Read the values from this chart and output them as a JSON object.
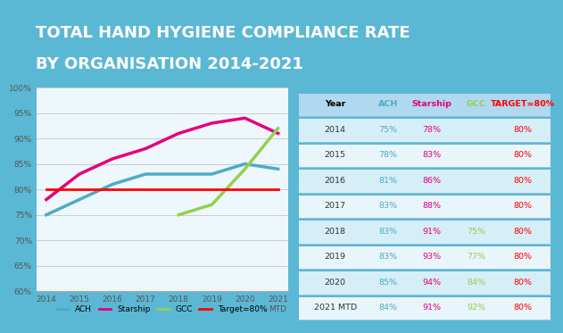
{
  "title_line1": "TOTAL HAND HYGIENE COMPLIANCE RATE",
  "title_line2": "BY ORGANISATION 2014-2021",
  "title_bg": "#E5007D",
  "title_color": "#FFFFFF",
  "outer_bg": "#5BB8D4",
  "chart_bg": "#EEF7FC",
  "table_bg": "#D6EEF8",
  "x_labels": [
    "2014",
    "2015",
    "2016",
    "2017",
    "2018",
    "2019",
    "2020",
    "2021\nMTD"
  ],
  "x_values": [
    0,
    1,
    2,
    3,
    4,
    5,
    6,
    7
  ],
  "ACH": [
    75,
    78,
    81,
    83,
    83,
    83,
    85,
    84
  ],
  "ACH_color": "#4BACC6",
  "Starship": [
    78,
    83,
    86,
    88,
    91,
    93,
    94,
    91
  ],
  "Starship_color": "#E5007D",
  "GCC": [
    null,
    null,
    null,
    null,
    75,
    77,
    84,
    92
  ],
  "GCC_color": "#92D050",
  "Target": [
    80,
    80,
    80,
    80,
    80,
    80,
    80,
    80
  ],
  "Target_color": "#FF0000",
  "ylim": [
    60,
    100
  ],
  "yticks": [
    60,
    65,
    70,
    75,
    80,
    85,
    90,
    95,
    100
  ],
  "ytick_labels": [
    "60%",
    "65%",
    "70%",
    "75%",
    "80%",
    "85%",
    "90%",
    "95%",
    "100%"
  ],
  "table_headers": [
    "Year",
    "ACH",
    "Starship",
    "GCC",
    "TARGET=80%"
  ],
  "table_header_colors": [
    "#000000",
    "#4BACC6",
    "#E5007D",
    "#92D050",
    "#FF0000"
  ],
  "table_rows": [
    [
      "2014",
      "75%",
      "78%",
      "",
      "80%"
    ],
    [
      "2015",
      "78%",
      "83%",
      "",
      "80%"
    ],
    [
      "2016",
      "81%",
      "86%",
      "",
      "80%"
    ],
    [
      "2017",
      "83%",
      "88%",
      "",
      "80%"
    ],
    [
      "2018",
      "83%",
      "91%",
      "75%",
      "80%"
    ],
    [
      "2019",
      "83%",
      "93%",
      "77%",
      "80%"
    ],
    [
      "2020",
      "85%",
      "94%",
      "84%",
      "80%"
    ],
    [
      "2021 MTD",
      "84%",
      "91%",
      "92%",
      "80%"
    ]
  ],
  "table_col_colors": [
    "#000000",
    "#4BACC6",
    "#E5007D",
    "#92D050",
    "#FF0000"
  ]
}
